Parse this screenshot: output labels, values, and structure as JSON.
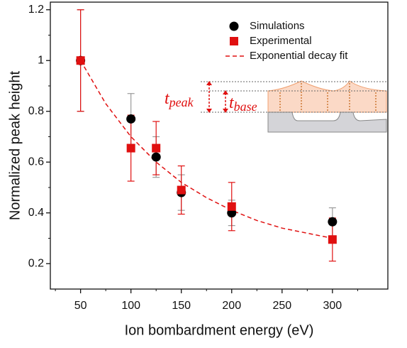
{
  "chart_data": {
    "type": "scatter",
    "xlabel": "Ion bombardment energy (eV)",
    "ylabel": "Normalized peak height",
    "xlim": [
      20,
      355
    ],
    "ylim": [
      0.1,
      1.23
    ],
    "xticks": [
      50,
      100,
      150,
      200,
      250,
      300
    ],
    "yticks": [
      0.2,
      0.4,
      0.6,
      0.8,
      1.0,
      1.2
    ],
    "legend": "upper right",
    "series": [
      {
        "name": "Simulations",
        "color": "#000000",
        "error_color": "#9a9a9a",
        "marker": "circle",
        "x": [
          50,
          100,
          125,
          150,
          200,
          300
        ],
        "values": [
          1.0,
          0.77,
          0.62,
          0.48,
          0.4,
          0.365
        ],
        "errors": [
          0.2,
          0.1,
          0.08,
          0.07,
          0.05,
          0.055
        ]
      },
      {
        "name": "Experimental",
        "color": "#e01010",
        "error_color": "#e01010",
        "marker": "square",
        "x": [
          50,
          100,
          125,
          150,
          200,
          300
        ],
        "values": [
          1.0,
          0.655,
          0.655,
          0.49,
          0.425,
          0.295
        ],
        "errors": [
          0.2,
          0.13,
          0.105,
          0.095,
          0.095,
          0.085
        ]
      },
      {
        "name": "Exponential decay fit",
        "color": "#e01010",
        "marker": "dashed-line",
        "x": [
          50,
          75,
          100,
          125,
          150,
          175,
          200,
          225,
          250,
          275,
          300
        ],
        "values": [
          1.0,
          0.83,
          0.7,
          0.6,
          0.52,
          0.46,
          0.41,
          0.37,
          0.34,
          0.32,
          0.3
        ]
      }
    ],
    "annotations": [
      {
        "text": "t",
        "sub": "peak"
      },
      {
        "text": "t",
        "sub": "base"
      }
    ]
  }
}
